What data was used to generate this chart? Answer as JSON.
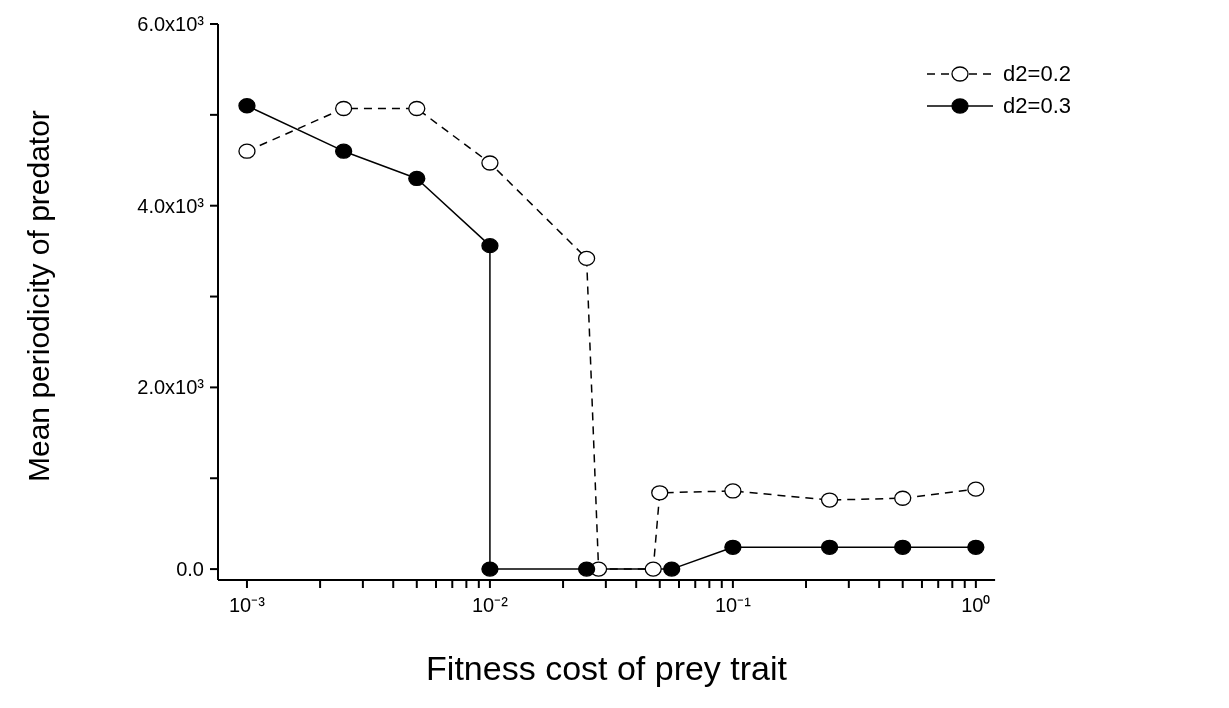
{
  "chart_data": {
    "type": "line",
    "xlabel": "Fitness cost of prey trait",
    "ylabel": "Mean periodicity of predator",
    "log": "x",
    "legend": "top right",
    "marker": "circle",
    "xlim": [
      0.00076,
      1.2
    ],
    "xticks": [
      {
        "value": 0.001,
        "label": "10⁻³"
      },
      {
        "value": 0.002,
        "label": null
      },
      {
        "value": 0.003,
        "label": null
      },
      {
        "value": 0.004,
        "label": null
      },
      {
        "value": 0.005,
        "label": null
      },
      {
        "value": 0.006,
        "label": null
      },
      {
        "value": 0.007,
        "label": null
      },
      {
        "value": 0.008,
        "label": null
      },
      {
        "value": 0.009,
        "label": null
      },
      {
        "value": 0.01,
        "label": "10⁻²"
      },
      {
        "value": 0.02,
        "label": null
      },
      {
        "value": 0.03,
        "label": null
      },
      {
        "value": 0.04,
        "label": null
      },
      {
        "value": 0.05,
        "label": null
      },
      {
        "value": 0.06,
        "label": null
      },
      {
        "value": 0.07,
        "label": null
      },
      {
        "value": 0.08,
        "label": null
      },
      {
        "value": 0.09,
        "label": null
      },
      {
        "value": 0.1,
        "label": "10⁻¹"
      },
      {
        "value": 0.2,
        "label": null
      },
      {
        "value": 0.3,
        "label": null
      },
      {
        "value": 0.4,
        "label": null
      },
      {
        "value": 0.5,
        "label": null
      },
      {
        "value": 0.6,
        "label": null
      },
      {
        "value": 0.7,
        "label": null
      },
      {
        "value": 0.8,
        "label": null
      },
      {
        "value": 0.9,
        "label": null
      },
      {
        "value": 1,
        "label": "10⁰"
      }
    ],
    "ylim": [
      -120,
      6000
    ],
    "yticks": [
      {
        "value": 0,
        "label": "0.0"
      },
      {
        "value": 1000,
        "label": null
      },
      {
        "value": 2000,
        "label": "2.0x10³"
      },
      {
        "value": 3000,
        "label": null
      },
      {
        "value": 4000,
        "label": "4.0x10³"
      },
      {
        "value": 5000,
        "label": null
      },
      {
        "value": 6000,
        "label": "6.0x10³"
      }
    ],
    "series": [
      {
        "name": "d2=0.2",
        "color": "#000000",
        "line_style": "dashed",
        "x": [
          0.001,
          0.0025,
          0.005,
          0.01,
          0.025,
          0.028,
          0.047,
          0.05,
          0.1,
          0.25,
          0.5,
          1
        ],
        "values": [
          4600,
          5070,
          5070,
          4470,
          3420,
          0,
          0,
          840,
          860,
          760,
          780,
          880
        ]
      },
      {
        "name": "d2=0.3",
        "color": "#000000",
        "line_style": "solid",
        "x": [
          0.001,
          0.0025,
          0.005,
          0.01,
          0.01,
          0.025,
          0.056,
          0.1,
          0.25,
          0.5,
          1
        ],
        "values": [
          5100,
          4600,
          4300,
          3560,
          0,
          0,
          0,
          240,
          240,
          240,
          240
        ]
      }
    ]
  }
}
